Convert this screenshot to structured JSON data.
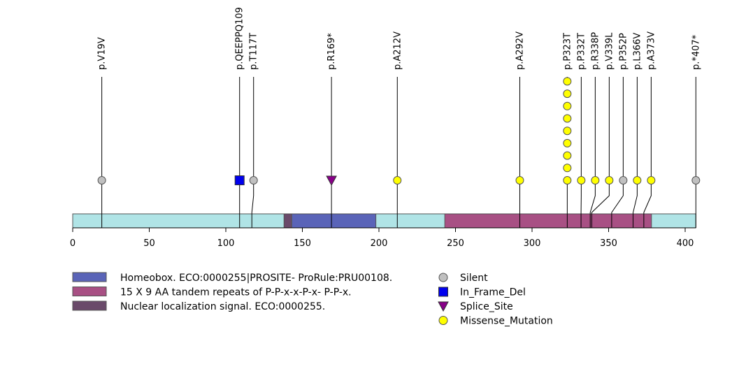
{
  "protein": {
    "length": 407,
    "axis_ticks": [
      0,
      50,
      100,
      150,
      200,
      250,
      300,
      350,
      400
    ],
    "backbone_color": "#b0e4e6"
  },
  "domains": [
    {
      "name": "Homeobox",
      "start": 143,
      "end": 198,
      "color": "#5a64b8"
    },
    {
      "name": "Nuclear localization signal",
      "start": 138,
      "end": 143,
      "color": "#6a4a6a"
    },
    {
      "name": "15 X 9 AA tandem repeats",
      "start": 243,
      "end": 378,
      "color": "#a85084"
    }
  ],
  "mutations": [
    {
      "label": "p.V19V",
      "pos": 19,
      "type": "Silent",
      "count": 1
    },
    {
      "label": "p.QEEPPQ109",
      "pos": 109,
      "type": "In_Frame_Del",
      "count": 1
    },
    {
      "label": "p.T117T",
      "pos": 117,
      "type": "Silent",
      "count": 1
    },
    {
      "label": "p.R169*",
      "pos": 169,
      "type": "Splice_Site",
      "count": 1
    },
    {
      "label": "p.A212V",
      "pos": 212,
      "type": "Missense_Mutation",
      "count": 1
    },
    {
      "label": "p.A292V",
      "pos": 292,
      "type": "Missense_Mutation",
      "count": 1
    },
    {
      "label": "p.P323T",
      "pos": 323,
      "type": "Missense_Mutation",
      "count": 9
    },
    {
      "label": "p.P332T",
      "pos": 332,
      "type": "Missense_Mutation",
      "count": 1
    },
    {
      "label": "p.R338P",
      "pos": 338,
      "type": "Missense_Mutation",
      "count": 1
    },
    {
      "label": "p.V339L",
      "pos": 339,
      "type": "Missense_Mutation",
      "count": 1
    },
    {
      "label": "p.P352P",
      "pos": 352,
      "type": "Silent",
      "count": 1
    },
    {
      "label": "p.L366V",
      "pos": 366,
      "type": "Missense_Mutation",
      "count": 1
    },
    {
      "label": "p.A373V",
      "pos": 373,
      "type": "Missense_Mutation",
      "count": 1
    },
    {
      "label": "p.*407*",
      "pos": 407,
      "type": "Silent",
      "count": 1
    }
  ],
  "legend_domains": [
    {
      "text": "Homeobox. ECO:0000255|PROSITE- ProRule:PRU00108.",
      "color": "#5a64b8"
    },
    {
      "text": "15 X 9 AA tandem repeats of P-P-x-x-P-x- P-P-x.",
      "color": "#a85084"
    },
    {
      "text": "Nuclear localization signal. ECO:0000255.",
      "color": "#6a4a6a"
    }
  ],
  "legend_types": [
    {
      "text": "Silent",
      "shape": "circle",
      "color": "#c0c0c0"
    },
    {
      "text": "In_Frame_Del",
      "shape": "square",
      "color": "#0000ee"
    },
    {
      "text": "Splice_Site",
      "shape": "triangle",
      "color": "#880088"
    },
    {
      "text": "Missense_Mutation",
      "shape": "circle",
      "color": "#ffff00"
    }
  ]
}
